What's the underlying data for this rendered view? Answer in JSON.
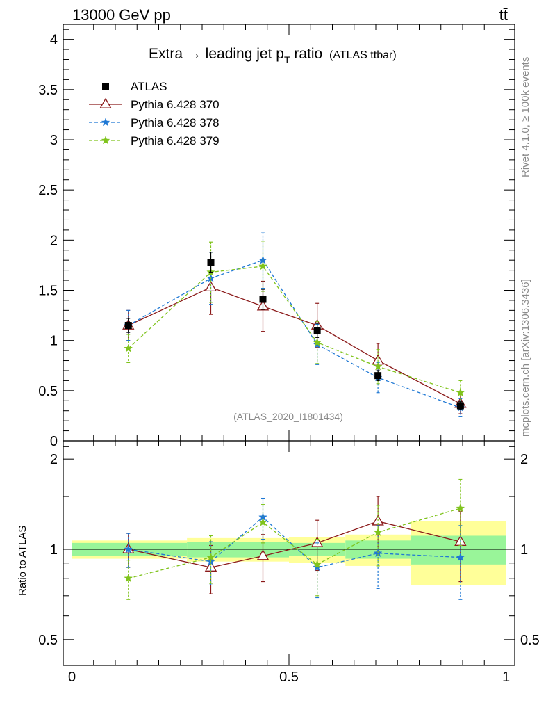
{
  "header": {
    "energy": "13000 GeV pp",
    "process": "tt̄"
  },
  "side_labels": {
    "rivet": "Rivet 4.1.0, ≥ 100k events",
    "mcplots": "mcplots.cern.ch [arXiv:1306.3436]"
  },
  "chart_data": {
    "type": "scatter",
    "title": "Extra → leading jet p",
    "title_sub": "T",
    "title_rest": " ratio",
    "title_tag": "(ATLAS ttbar)",
    "analysis_label": "(ATLAS_2020_I1801434)",
    "xlabel": "",
    "ylabel_main": "",
    "ylabel_ratio": "Ratio to ATLAS",
    "xlim": [
      -0.02,
      1.02
    ],
    "ylim_main": [
      0,
      4.15
    ],
    "ylim_ratio": [
      0.41,
      2.3
    ],
    "x_ticks": [
      {
        "v": 0,
        "label": "0"
      },
      {
        "v": 0.5,
        "label": "0.5"
      },
      {
        "v": 1,
        "label": "1"
      }
    ],
    "main_y_ticks": [
      {
        "v": 0,
        "label": "0"
      },
      {
        "v": 0.5,
        "label": "0.5"
      },
      {
        "v": 1,
        "label": "1"
      },
      {
        "v": 1.5,
        "label": "1.5"
      },
      {
        "v": 2,
        "label": "2"
      },
      {
        "v": 2.5,
        "label": "2.5"
      },
      {
        "v": 3,
        "label": "3"
      },
      {
        "v": 3.5,
        "label": "3.5"
      },
      {
        "v": 4,
        "label": "4"
      }
    ],
    "ratio_y_ticks": [
      {
        "v": 0.5,
        "label": "0.5"
      },
      {
        "v": 1,
        "label": "1"
      },
      {
        "v": 2,
        "label": "2"
      }
    ],
    "bin_edges": [
      0,
      0.265,
      0.5,
      0.63,
      0.78,
      1.0
    ],
    "x": [
      0.13,
      0.32,
      0.44,
      0.565,
      0.705,
      0.895
    ],
    "data": {
      "name": "ATLAS",
      "y": [
        1.15,
        1.78,
        1.41,
        1.1,
        0.65,
        0.35
      ],
      "err": [
        0.07,
        0.1,
        0.1,
        0.07,
        0.05,
        0.04
      ]
    },
    "ratio_bands": {
      "inner": [
        0.05,
        0.06,
        0.05,
        0.07,
        0.11,
        0.17
      ],
      "outer": [
        0.07,
        0.09,
        0.1,
        0.12,
        0.24,
        0.43
      ]
    },
    "series": [
      {
        "name": "Pythia 6.428 370",
        "color": "#8b1a1a",
        "marker": "triangle",
        "dashed": false,
        "y": [
          1.15,
          1.53,
          1.34,
          1.15,
          0.8,
          0.37
        ],
        "err": [
          0.15,
          0.27,
          0.25,
          0.22,
          0.17,
          0.1
        ],
        "ratio": [
          1.0,
          0.87,
          0.95,
          1.05,
          1.24,
          1.06
        ],
        "ratio_err": [
          0.13,
          0.16,
          0.17,
          0.2,
          0.26,
          0.28
        ]
      },
      {
        "name": "Pythia 6.428 378",
        "color": "#1f78d4",
        "marker": "star",
        "dashed": true,
        "y": [
          1.15,
          1.62,
          1.8,
          0.96,
          0.63,
          0.33
        ],
        "err": [
          0.15,
          0.26,
          0.28,
          0.2,
          0.15,
          0.09
        ],
        "ratio": [
          1.0,
          0.91,
          1.28,
          0.87,
          0.97,
          0.94
        ],
        "ratio_err": [
          0.13,
          0.15,
          0.2,
          0.18,
          0.23,
          0.26
        ]
      },
      {
        "name": "Pythia 6.428 379",
        "color": "#7fc31c",
        "marker": "star",
        "dashed": true,
        "y": [
          0.92,
          1.68,
          1.74,
          0.98,
          0.74,
          0.48
        ],
        "err": [
          0.14,
          0.3,
          0.25,
          0.21,
          0.17,
          0.12
        ],
        "ratio": [
          0.8,
          0.94,
          1.23,
          0.89,
          1.14,
          1.37
        ],
        "ratio_err": [
          0.12,
          0.17,
          0.18,
          0.19,
          0.26,
          0.34
        ]
      }
    ]
  }
}
